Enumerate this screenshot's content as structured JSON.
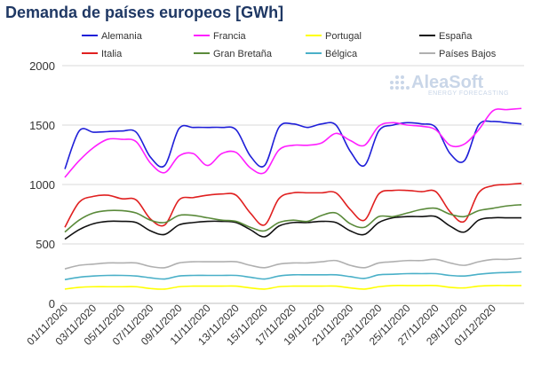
{
  "chart_data": {
    "type": "line",
    "title": "Demanda de países europeos [GWh]",
    "ylim": [
      0,
      2000
    ],
    "yticks": [
      0,
      500,
      1000,
      1500,
      2000
    ],
    "grid": true,
    "legend_position": "top",
    "watermark": {
      "main": "AleaSoft",
      "sub": "ENERGY FORECASTING"
    },
    "x": [
      "01/11/2020",
      "02/11/2020",
      "03/11/2020",
      "04/11/2020",
      "05/11/2020",
      "06/11/2020",
      "07/11/2020",
      "08/11/2020",
      "09/11/2020",
      "10/11/2020",
      "11/11/2020",
      "12/11/2020",
      "13/11/2020",
      "14/11/2020",
      "15/11/2020",
      "16/11/2020",
      "17/11/2020",
      "18/11/2020",
      "19/11/2020",
      "20/11/2020",
      "21/11/2020",
      "22/11/2020",
      "23/11/2020",
      "24/11/2020",
      "25/11/2020",
      "26/11/2020",
      "27/11/2020",
      "28/11/2020",
      "29/11/2020",
      "30/11/2020",
      "01/12/2020",
      "02/12/2020",
      "03/12/2020"
    ],
    "x_tick_labels": [
      "01/11/2020",
      "03/11/2020",
      "05/11/2020",
      "07/11/2020",
      "09/11/2020",
      "11/11/2020",
      "13/11/2020",
      "15/11/2020",
      "17/11/2020",
      "19/11/2020",
      "21/11/2020",
      "23/11/2020",
      "25/11/2020",
      "27/11/2020",
      "29/11/2020",
      "01/12/2020"
    ],
    "series": [
      {
        "name": "Alemania",
        "color": "#1f1fd8",
        "values": [
          1130,
          1450,
          1440,
          1445,
          1450,
          1440,
          1230,
          1160,
          1470,
          1480,
          1480,
          1480,
          1460,
          1240,
          1160,
          1480,
          1510,
          1480,
          1510,
          1500,
          1280,
          1160,
          1450,
          1500,
          1520,
          1510,
          1480,
          1260,
          1200,
          1500,
          1530,
          1520,
          1510
        ]
      },
      {
        "name": "Francia",
        "color": "#ff1fff",
        "values": [
          1060,
          1200,
          1310,
          1380,
          1380,
          1360,
          1180,
          1100,
          1240,
          1260,
          1160,
          1260,
          1270,
          1140,
          1100,
          1290,
          1330,
          1330,
          1350,
          1430,
          1370,
          1330,
          1490,
          1520,
          1500,
          1490,
          1460,
          1330,
          1340,
          1460,
          1620,
          1630,
          1640
        ]
      },
      {
        "name": "Portugal",
        "color": "#ffff00",
        "values": [
          120,
          135,
          140,
          140,
          140,
          140,
          125,
          120,
          140,
          145,
          145,
          145,
          145,
          130,
          120,
          140,
          145,
          145,
          145,
          145,
          130,
          120,
          140,
          150,
          150,
          150,
          150,
          135,
          130,
          145,
          150,
          150,
          150
        ]
      },
      {
        "name": "España",
        "color": "#111111",
        "values": [
          540,
          620,
          670,
          690,
          690,
          680,
          610,
          580,
          660,
          680,
          690,
          690,
          680,
          620,
          560,
          650,
          680,
          680,
          690,
          680,
          610,
          580,
          680,
          720,
          730,
          730,
          730,
          650,
          600,
          700,
          720,
          720,
          720
        ]
      },
      {
        "name": "Italia",
        "color": "#e02020",
        "values": [
          640,
          850,
          900,
          910,
          880,
          870,
          710,
          660,
          870,
          890,
          910,
          920,
          910,
          760,
          660,
          880,
          930,
          930,
          930,
          930,
          790,
          700,
          920,
          950,
          950,
          940,
          940,
          770,
          690,
          930,
          990,
          1000,
          1010
        ]
      },
      {
        "name": "Gran Bretaña",
        "color": "#5a8a3a",
        "values": [
          600,
          700,
          760,
          780,
          780,
          760,
          700,
          680,
          740,
          740,
          720,
          700,
          690,
          640,
          610,
          680,
          700,
          690,
          740,
          760,
          670,
          640,
          730,
          730,
          760,
          790,
          800,
          750,
          730,
          780,
          800,
          820,
          830
        ]
      },
      {
        "name": "Bélgica",
        "color": "#4ab0c8",
        "values": [
          200,
          220,
          230,
          235,
          235,
          230,
          215,
          205,
          230,
          235,
          235,
          235,
          235,
          220,
          205,
          230,
          240,
          240,
          240,
          240,
          225,
          210,
          240,
          245,
          250,
          250,
          250,
          235,
          230,
          245,
          255,
          260,
          265
        ]
      },
      {
        "name": "Países Bajos",
        "color": "#b0b0b0",
        "values": [
          290,
          320,
          330,
          340,
          340,
          340,
          310,
          300,
          340,
          350,
          350,
          350,
          350,
          320,
          300,
          330,
          340,
          340,
          350,
          360,
          320,
          300,
          340,
          350,
          360,
          360,
          370,
          340,
          320,
          350,
          370,
          370,
          380
        ]
      }
    ]
  }
}
